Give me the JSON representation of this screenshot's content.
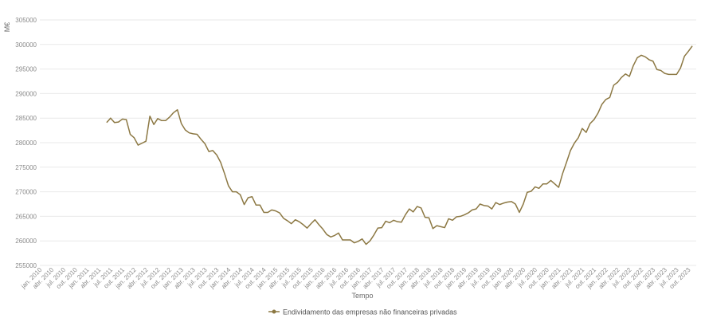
{
  "chart_data": {
    "type": "line",
    "ylabel": "M€",
    "xlabel": "Tempo",
    "ylim": [
      255000,
      305000
    ],
    "yticks": [
      255000,
      260000,
      265000,
      270000,
      275000,
      280000,
      285000,
      290000,
      295000,
      300000,
      305000
    ],
    "ytick_labels": [
      "255000",
      "260000",
      "265000",
      "270000",
      "275000",
      "280000",
      "285000",
      "290000",
      "295000",
      "300000",
      "305000"
    ],
    "xtick_labels": [
      "jan. 2010",
      "abr. 2010",
      "jul. 2010",
      "out. 2010",
      "jan. 2011",
      "abr. 2011",
      "jul. 2011",
      "out. 2011",
      "jan. 2012",
      "abr. 2012",
      "jul. 2012",
      "out. 2012",
      "jan. 2013",
      "abr. 2013",
      "jul. 2013",
      "out. 2013",
      "jan. 2014",
      "abr. 2014",
      "jul. 2014",
      "out. 2014",
      "jan. 2015",
      "abr. 2015",
      "jul. 2015",
      "out. 2015",
      "jan. 2016",
      "abr. 2016",
      "jul. 2016",
      "out. 2016",
      "jan. 2017",
      "abr. 2017",
      "jul. 2017",
      "out. 2017",
      "jan. 2018",
      "abr. 2018",
      "jul. 2018",
      "out. 2018",
      "jan. 2019",
      "abr. 2019",
      "jul. 2019",
      "out. 2019",
      "jan. 2020",
      "abr. 2020",
      "jul. 2020",
      "out. 2020",
      "jan. 2021",
      "abr. 2021",
      "jul. 2021",
      "out. 2021",
      "jan. 2022",
      "abr. 2022",
      "jul. 2022",
      "out. 2022",
      "jan. 2023",
      "abr. 2023",
      "jul. 2023",
      "out. 2023"
    ],
    "grid": "horizontal",
    "legend_position": "bottom",
    "series": [
      {
        "name": "Endividamento das empresas não financeiras privadas",
        "color": "#8c7843",
        "start": "2011-06",
        "end": "2023-12",
        "values": [
          284100,
          285000,
          284100,
          284200,
          284800,
          284700,
          281700,
          281000,
          279500,
          279900,
          280300,
          285400,
          283700,
          284900,
          284500,
          284500,
          285200,
          286100,
          286700,
          283900,
          282600,
          282000,
          281800,
          281700,
          280700,
          279800,
          278200,
          278400,
          277500,
          276000,
          273700,
          271200,
          270000,
          270000,
          269400,
          267400,
          268800,
          269000,
          267300,
          267300,
          265800,
          265800,
          266300,
          266100,
          265700,
          264600,
          264100,
          263500,
          264300,
          263900,
          263300,
          262600,
          263500,
          264300,
          263300,
          262400,
          261300,
          260800,
          261100,
          261600,
          260200,
          260200,
          260200,
          259600,
          259900,
          260400,
          259300,
          260000,
          261200,
          262600,
          262700,
          264000,
          263700,
          264200,
          263900,
          263800,
          265300,
          266500,
          265900,
          267000,
          266700,
          264800,
          264700,
          262500,
          263100,
          262900,
          262700,
          264500,
          264200,
          264900,
          265000,
          265300,
          265700,
          266300,
          266500,
          267500,
          267200,
          267100,
          266500,
          267800,
          267400,
          267700,
          267900,
          268000,
          267500,
          265800,
          267500,
          269900,
          270100,
          271000,
          270700,
          271600,
          271600,
          272300,
          271600,
          270900,
          273700,
          276000,
          278400,
          279900,
          281000,
          282900,
          282100,
          283900,
          284700,
          286000,
          287800,
          288800,
          289200,
          291700,
          292300,
          293300,
          294000,
          293500,
          295700,
          297300,
          297800,
          297500,
          296900,
          296600,
          294900,
          294700,
          294100,
          293900,
          293900,
          293900,
          295200,
          297600,
          298600,
          299700
        ]
      }
    ]
  }
}
